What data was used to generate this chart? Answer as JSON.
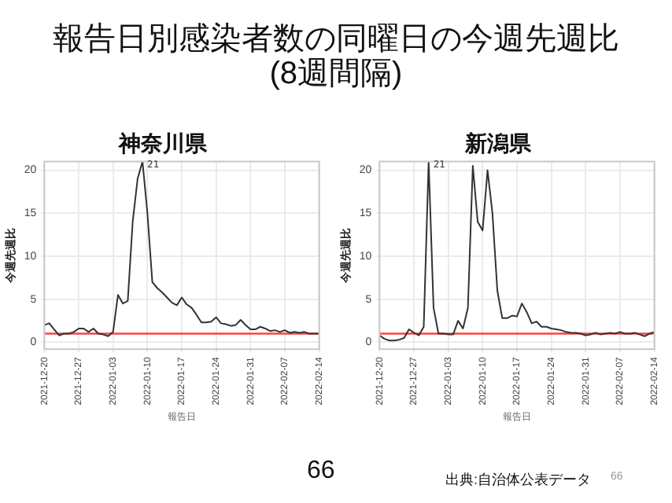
{
  "chart_data": [
    {
      "type": "other",
      "title": "報告日別感染者数の同曜日の今週先週比\n(8週間隔)",
      "annotations": [
        "66",
        "出典:自治体公表データ",
        "66"
      ]
    },
    {
      "type": "line",
      "title": "神奈川県",
      "xlabel": "報告日",
      "ylabel": "今週先週比",
      "grid": true,
      "legend": false,
      "marker": "none",
      "line_style": "solid",
      "x": [
        "2021-12-20",
        "2021-12-21",
        "2021-12-22",
        "2021-12-23",
        "2021-12-24",
        "2021-12-25",
        "2021-12-26",
        "2021-12-27",
        "2021-12-28",
        "2021-12-29",
        "2021-12-30",
        "2021-12-31",
        "2022-01-01",
        "2022-01-02",
        "2022-01-03",
        "2022-01-04",
        "2022-01-05",
        "2022-01-06",
        "2022-01-07",
        "2022-01-08",
        "2022-01-09",
        "2022-01-10",
        "2022-01-11",
        "2022-01-12",
        "2022-01-13",
        "2022-01-14",
        "2022-01-15",
        "2022-01-16",
        "2022-01-17",
        "2022-01-18",
        "2022-01-19",
        "2022-01-20",
        "2022-01-21",
        "2022-01-22",
        "2022-01-23",
        "2022-01-24",
        "2022-01-25",
        "2022-01-26",
        "2022-01-27",
        "2022-01-28",
        "2022-01-29",
        "2022-01-30",
        "2022-01-31",
        "2022-02-01",
        "2022-02-02",
        "2022-02-03",
        "2022-02-04",
        "2022-02-05",
        "2022-02-06",
        "2022-02-07",
        "2022-02-08",
        "2022-02-09",
        "2022-02-10",
        "2022-02-11",
        "2022-02-12",
        "2022-02-13",
        "2022-02-14"
      ],
      "series": [
        {
          "color": "#333333",
          "values": [
            2.0,
            2.2,
            1.5,
            0.8,
            1.0,
            1.0,
            1.2,
            1.6,
            1.6,
            1.2,
            1.6,
            1.0,
            0.9,
            0.7,
            1.2,
            5.5,
            4.5,
            4.8,
            14,
            19,
            21,
            15,
            7,
            6.3,
            5.8,
            5.2,
            4.6,
            4.3,
            5.2,
            4.4,
            4.0,
            3.2,
            2.3,
            2.3,
            2.4,
            2.9,
            2.2,
            2.1,
            1.9,
            2.0,
            2.6,
            2.0,
            1.5,
            1.5,
            1.8,
            1.6,
            1.3,
            1.4,
            1.2,
            1.4,
            1.1,
            1.2,
            1.1,
            1.2,
            1.0,
            1.0,
            1.0
          ]
        }
      ],
      "xlim": [
        "2021-12-20",
        "2022-02-14"
      ],
      "xticks": [
        "2021-12-20",
        "2021-12-27",
        "2022-01-03",
        "2022-01-10",
        "2022-01-17",
        "2022-01-24",
        "2022-01-31",
        "2022-02-07",
        "2022-02-14"
      ],
      "ylim": [
        -0.8,
        21
      ],
      "yticks": [
        0,
        5,
        10,
        15,
        20
      ],
      "ref_lines": [
        {
          "axis": "y",
          "value": 1,
          "color": "#ff4040"
        }
      ],
      "annotations": [
        {
          "text": "21",
          "x": "2022-01-09",
          "y": 21
        }
      ]
    },
    {
      "type": "line",
      "title": "新潟県",
      "xlabel": "報告日",
      "ylabel": "今週先週比",
      "grid": true,
      "legend": false,
      "marker": "none",
      "line_style": "solid",
      "x": [
        "2021-12-20",
        "2021-12-21",
        "2021-12-22",
        "2021-12-23",
        "2021-12-24",
        "2021-12-25",
        "2021-12-26",
        "2021-12-27",
        "2021-12-28",
        "2021-12-29",
        "2021-12-30",
        "2021-12-31",
        "2022-01-01",
        "2022-01-02",
        "2022-01-03",
        "2022-01-04",
        "2022-01-05",
        "2022-01-06",
        "2022-01-07",
        "2022-01-08",
        "2022-01-09",
        "2022-01-10",
        "2022-01-11",
        "2022-01-12",
        "2022-01-13",
        "2022-01-14",
        "2022-01-15",
        "2022-01-16",
        "2022-01-17",
        "2022-01-18",
        "2022-01-19",
        "2022-01-20",
        "2022-01-21",
        "2022-01-22",
        "2022-01-23",
        "2022-01-24",
        "2022-01-25",
        "2022-01-26",
        "2022-01-27",
        "2022-01-28",
        "2022-01-29",
        "2022-01-30",
        "2022-01-31",
        "2022-02-01",
        "2022-02-02",
        "2022-02-03",
        "2022-02-04",
        "2022-02-05",
        "2022-02-06",
        "2022-02-07",
        "2022-02-08",
        "2022-02-09",
        "2022-02-10",
        "2022-02-11",
        "2022-02-12",
        "2022-02-13",
        "2022-02-14"
      ],
      "series": [
        {
          "color": "#333333",
          "values": [
            0.8,
            0.4,
            0.2,
            0.2,
            0.3,
            0.5,
            1.5,
            1.1,
            0.8,
            1.8,
            21,
            4,
            1.0,
            1.0,
            0.9,
            0.9,
            2.5,
            1.6,
            4,
            20.5,
            14,
            13,
            20,
            15,
            6,
            2.8,
            2.8,
            3.1,
            3.0,
            4.5,
            3.5,
            2.2,
            2.4,
            1.8,
            1.8,
            1.6,
            1.5,
            1.4,
            1.2,
            1.1,
            1.1,
            1.0,
            0.8,
            0.9,
            1.1,
            0.9,
            1.0,
            1.1,
            1.0,
            1.2,
            1.0,
            1.0,
            1.1,
            0.9,
            0.7,
            1.0,
            1.2
          ]
        }
      ],
      "xlim": [
        "2021-12-20",
        "2022-02-14"
      ],
      "xticks": [
        "2021-12-20",
        "2021-12-27",
        "2022-01-03",
        "2022-01-10",
        "2022-01-17",
        "2022-01-24",
        "2022-01-31",
        "2022-02-07",
        "2022-02-14"
      ],
      "ylim": [
        -0.8,
        21
      ],
      "yticks": [
        0,
        5,
        10,
        15,
        20
      ],
      "ref_lines": [
        {
          "axis": "y",
          "value": 1,
          "color": "#ff4040"
        }
      ],
      "annotations": [
        {
          "text": "21",
          "x": "2021-12-30",
          "y": 21
        }
      ]
    }
  ]
}
